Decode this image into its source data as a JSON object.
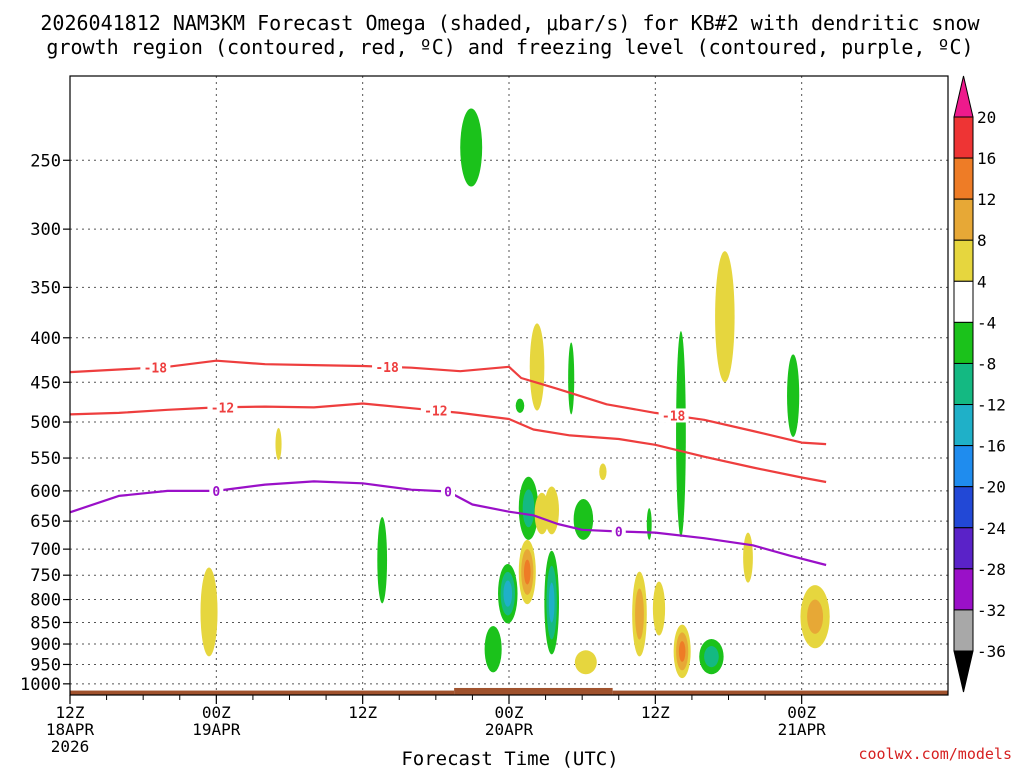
{
  "chart_data": {
    "type": "heatmap",
    "title": "2026041812 NAM3KM Forecast Omega (shaded, μbar/s) for KB#2 with dendritic snow growth region (contoured, red, ºC) and freezing level (contoured, purple, ºC)",
    "title_lines": [
      "2026041812 NAM3KM Forecast Omega (shaded, μbar/s) for KB#2 with dendritic snow",
      "growth region (contoured, red, ºC) and freezing level (contoured, purple, ºC)"
    ],
    "xlabel": "Forecast Time (UTC)",
    "credit": "coolwx.com/models",
    "x_unit": "hours since 2026041812",
    "x_range": [
      0,
      72
    ],
    "y_range_hpa": [
      200,
      1030
    ],
    "y_scale": "log",
    "x_ticks": [
      {
        "hour": 0,
        "lines": [
          "12Z",
          "18APR",
          "2026"
        ]
      },
      {
        "hour": 12,
        "lines": [
          "00Z",
          "19APR"
        ]
      },
      {
        "hour": 24,
        "lines": [
          "12Z"
        ]
      },
      {
        "hour": 36,
        "lines": [
          "00Z",
          "20APR"
        ]
      },
      {
        "hour": 48,
        "lines": [
          "12Z"
        ]
      },
      {
        "hour": 60,
        "lines": [
          "00Z",
          "21APR"
        ]
      }
    ],
    "x_minor_ticks": [
      3,
      6,
      9,
      15,
      18,
      21,
      27,
      30,
      33,
      39,
      42,
      45,
      51,
      54,
      57
    ],
    "y_ticks": [
      "250",
      "300",
      "350",
      "400",
      "450",
      "500",
      "550",
      "600",
      "650",
      "700",
      "750",
      "800",
      "850",
      "900",
      "950",
      "1000"
    ],
    "gridlines": "dotted",
    "colorbar": {
      "labels": [
        "20",
        "16",
        "12",
        "8",
        "4",
        "-4",
        "-8",
        "-12",
        "-16",
        "-20",
        "-24",
        "-28",
        "-32",
        "-36"
      ],
      "bins": [
        {
          "from": 16,
          "to": 20,
          "color": "#ee3434"
        },
        {
          "from": 12,
          "to": 16,
          "color": "#ee7c26"
        },
        {
          "from": 8,
          "to": 12,
          "color": "#e7a836"
        },
        {
          "from": 4,
          "to": 8,
          "color": "#e6d63e"
        },
        {
          "from": -4,
          "to": 4,
          "color": "#ffffff"
        },
        {
          "from": -8,
          "to": -4,
          "color": "#1bc21b"
        },
        {
          "from": -12,
          "to": -8,
          "color": "#14b982"
        },
        {
          "from": -16,
          "to": -12,
          "color": "#1fb0c8"
        },
        {
          "from": -20,
          "to": -16,
          "color": "#1f8cee"
        },
        {
          "from": -24,
          "to": -20,
          "color": "#2248d6"
        },
        {
          "from": -28,
          "to": -24,
          "color": "#5a22c8"
        },
        {
          "from": -32,
          "to": -28,
          "color": "#9a10c8"
        },
        {
          "from": -36,
          "to": -32,
          "color": "#a8a8a8"
        }
      ],
      "above_color": "#ee1a8c",
      "below_color": "#000000"
    },
    "contours": [
      {
        "name": "dendritic-18",
        "value": -18,
        "label": "-18",
        "color": "#ee3e3e",
        "label_hours": [
          7,
          26,
          49.5
        ],
        "points": [
          [
            0,
            438
          ],
          [
            4,
            435
          ],
          [
            8,
            432
          ],
          [
            12,
            425
          ],
          [
            16,
            429
          ],
          [
            20,
            430
          ],
          [
            24,
            431
          ],
          [
            28,
            433
          ],
          [
            32,
            437
          ],
          [
            36,
            432
          ],
          [
            37,
            445
          ],
          [
            40,
            458
          ],
          [
            44,
            477
          ],
          [
            48,
            488
          ],
          [
            52,
            497
          ],
          [
            56,
            512
          ],
          [
            60,
            528
          ],
          [
            62,
            530
          ]
        ]
      },
      {
        "name": "dendritic-12",
        "value": -12,
        "label": "-12",
        "color": "#ee3e3e",
        "label_hours": [
          12.5,
          30
        ],
        "points": [
          [
            0,
            490
          ],
          [
            4,
            488
          ],
          [
            8,
            484
          ],
          [
            12,
            481
          ],
          [
            16,
            480
          ],
          [
            20,
            481
          ],
          [
            24,
            476
          ],
          [
            28,
            482
          ],
          [
            32,
            488
          ],
          [
            36,
            496
          ],
          [
            38,
            510
          ],
          [
            41,
            518
          ],
          [
            45,
            523
          ],
          [
            48,
            531
          ],
          [
            52,
            548
          ],
          [
            56,
            564
          ],
          [
            60,
            579
          ],
          [
            62,
            586
          ]
        ]
      },
      {
        "name": "freezing-level-0",
        "value": 0,
        "label": "0",
        "color": "#9a10c8",
        "label_hours": [
          12,
          31,
          45
        ],
        "points": [
          [
            0,
            635
          ],
          [
            4,
            608
          ],
          [
            8,
            600
          ],
          [
            12,
            600
          ],
          [
            16,
            590
          ],
          [
            20,
            585
          ],
          [
            24,
            588
          ],
          [
            28,
            598
          ],
          [
            31,
            601
          ],
          [
            33,
            622
          ],
          [
            36,
            634
          ],
          [
            38,
            640
          ],
          [
            40,
            655
          ],
          [
            42,
            665
          ],
          [
            45,
            668
          ],
          [
            48,
            670
          ],
          [
            52,
            680
          ],
          [
            56,
            693
          ],
          [
            59,
            712
          ],
          [
            62,
            730
          ]
        ]
      }
    ],
    "omega_cells": [
      {
        "hour": 11.4,
        "hpa_top": 735,
        "hpa_bottom": 930,
        "half_width_h": 0.7,
        "peak": 7
      },
      {
        "hour": 17.1,
        "hpa_top": 508,
        "hpa_bottom": 553,
        "half_width_h": 0.25,
        "peak": 5
      },
      {
        "hour": 25.6,
        "hpa_top": 643,
        "hpa_bottom": 808,
        "half_width_h": 0.4,
        "peak": -7
      },
      {
        "hour": 32.9,
        "hpa_top": 218,
        "hpa_bottom": 268,
        "half_width_h": 0.9,
        "peak": -7
      },
      {
        "hour": 34.7,
        "hpa_top": 858,
        "hpa_bottom": 970,
        "half_width_h": 0.7,
        "peak": -7
      },
      {
        "hour": 35.9,
        "hpa_top": 728,
        "hpa_bottom": 852,
        "half_width_h": 0.8,
        "peak": -14
      },
      {
        "hour": 36.9,
        "hpa_top": 470,
        "hpa_bottom": 488,
        "half_width_h": 0.35,
        "peak": -6
      },
      {
        "hour": 37.5,
        "hpa_top": 683,
        "hpa_bottom": 810,
        "half_width_h": 0.7,
        "peak": 13
      },
      {
        "hour": 37.6,
        "hpa_top": 578,
        "hpa_bottom": 683,
        "half_width_h": 0.8,
        "peak": -10
      },
      {
        "hour": 38.3,
        "hpa_top": 385,
        "hpa_bottom": 485,
        "half_width_h": 0.6,
        "peak": 6
      },
      {
        "hour": 38.7,
        "hpa_top": 603,
        "hpa_bottom": 673,
        "half_width_h": 0.6,
        "peak": 6
      },
      {
        "hour": 39.5,
        "hpa_top": 703,
        "hpa_bottom": 925,
        "half_width_h": 0.6,
        "peak": -13
      },
      {
        "hour": 39.5,
        "hpa_top": 593,
        "hpa_bottom": 673,
        "half_width_h": 0.6,
        "peak": 5
      },
      {
        "hour": 41.1,
        "hpa_top": 405,
        "hpa_bottom": 490,
        "half_width_h": 0.25,
        "peak": -6
      },
      {
        "hour": 42.1,
        "hpa_top": 613,
        "hpa_bottom": 683,
        "half_width_h": 0.8,
        "peak": -7
      },
      {
        "hour": 42.3,
        "hpa_top": 915,
        "hpa_bottom": 975,
        "half_width_h": 0.9,
        "peak": 5
      },
      {
        "hour": 43.7,
        "hpa_top": 558,
        "hpa_bottom": 583,
        "half_width_h": 0.3,
        "peak": 5
      },
      {
        "hour": 46.7,
        "hpa_top": 743,
        "hpa_bottom": 930,
        "half_width_h": 0.6,
        "peak": 10
      },
      {
        "hour": 47.5,
        "hpa_top": 628,
        "hpa_bottom": 683,
        "half_width_h": 0.2,
        "peak": -6
      },
      {
        "hour": 48.3,
        "hpa_top": 763,
        "hpa_bottom": 880,
        "half_width_h": 0.5,
        "peak": 6
      },
      {
        "hour": 50.1,
        "hpa_top": 393,
        "hpa_bottom": 678,
        "half_width_h": 0.4,
        "peak": -6
      },
      {
        "hour": 50.2,
        "hpa_top": 855,
        "hpa_bottom": 985,
        "half_width_h": 0.7,
        "peak": 13
      },
      {
        "hour": 52.6,
        "hpa_top": 888,
        "hpa_bottom": 975,
        "half_width_h": 1.0,
        "peak": -10
      },
      {
        "hour": 53.7,
        "hpa_top": 318,
        "hpa_bottom": 450,
        "half_width_h": 0.8,
        "peak": 6
      },
      {
        "hour": 55.6,
        "hpa_top": 670,
        "hpa_bottom": 765,
        "half_width_h": 0.4,
        "peak": 6
      },
      {
        "hour": 59.3,
        "hpa_top": 418,
        "hpa_bottom": 520,
        "half_width_h": 0.5,
        "peak": -6
      },
      {
        "hour": 61.1,
        "hpa_top": 770,
        "hpa_bottom": 910,
        "half_width_h": 1.2,
        "peak": 9
      }
    ],
    "terrain": {
      "color": "#a0522d",
      "segments": [
        {
          "from_hour": 0,
          "to_hour": 31.5,
          "hpa": 1018
        },
        {
          "from_hour": 31.5,
          "to_hour": 44.5,
          "hpa": 1011
        },
        {
          "from_hour": 44.5,
          "to_hour": 72,
          "hpa": 1018
        }
      ]
    }
  }
}
